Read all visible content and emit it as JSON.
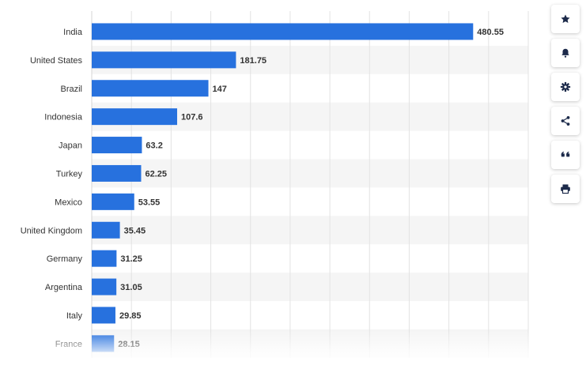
{
  "chart_data": {
    "type": "bar",
    "orientation": "horizontal",
    "categories": [
      "India",
      "United States",
      "Brazil",
      "Indonesia",
      "Japan",
      "Turkey",
      "Mexico",
      "United Kingdom",
      "Germany",
      "Argentina",
      "Italy",
      "France"
    ],
    "values": [
      480.55,
      181.75,
      147,
      107.6,
      63.2,
      62.25,
      53.55,
      35.45,
      31.25,
      31.05,
      29.85,
      28.15
    ],
    "value_labels": [
      "480.55",
      "181.75",
      "147",
      "107.6",
      "63.2",
      "62.25",
      "53.55",
      "35.45",
      "31.25",
      "31.05",
      "29.85",
      "28.15"
    ],
    "xlim": [
      0,
      550
    ],
    "grid": true,
    "bar_color": "#2771de"
  },
  "toolbar": {
    "buttons": [
      {
        "name": "favorite-button",
        "icon": "star-icon"
      },
      {
        "name": "notification-button",
        "icon": "bell-icon"
      },
      {
        "name": "settings-button",
        "icon": "gear-icon"
      },
      {
        "name": "share-button",
        "icon": "share-icon"
      },
      {
        "name": "cite-button",
        "icon": "quote-icon"
      },
      {
        "name": "print-button",
        "icon": "print-icon"
      }
    ]
  },
  "colors": {
    "bar": "#2771de",
    "stripe": "#f5f5f5",
    "grid": "#e3e3e3",
    "icon": "#1c2a4a"
  }
}
